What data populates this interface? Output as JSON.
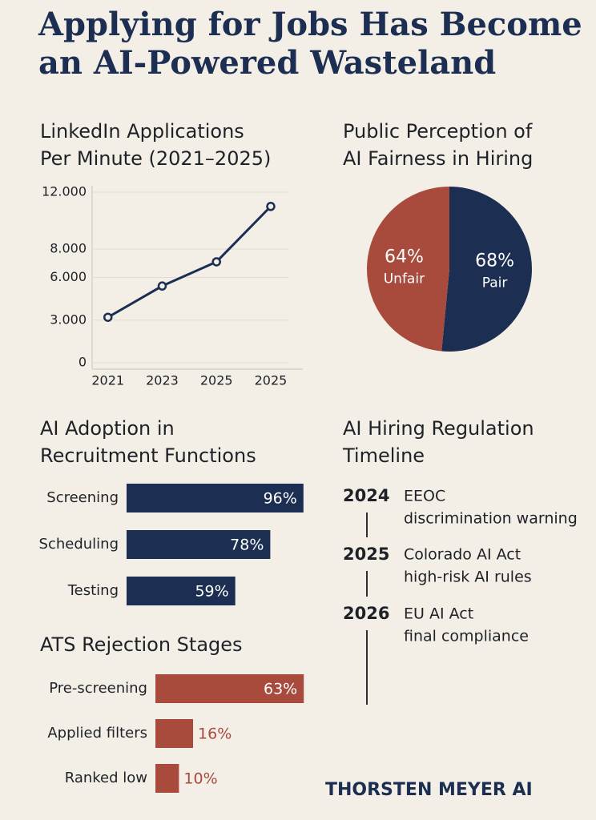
{
  "title": [
    "Applying for Jobs Has Become",
    "an AI-Powered Wasteland"
  ],
  "chart_data": [
    {
      "type": "line",
      "title": [
        "LinkedIn Applications",
        "Per Minute (2021–2025)"
      ],
      "categories": [
        "2021",
        "2023",
        "2025",
        "2025"
      ],
      "values": [
        3200,
        5400,
        7100,
        11000
      ],
      "color": "#1c2f52",
      "ylim": [
        0,
        12000
      ],
      "yticks": [
        0,
        {
          "value": 3000,
          "label": "3.000"
        },
        {
          "value": 6000,
          "label": "6.000"
        },
        {
          "value": 8000,
          "label": "8.000"
        },
        {
          "value": 12000,
          "label": "12.000"
        }
      ],
      "grid": true
    },
    {
      "type": "pie",
      "title": [
        "Public Perception of",
        "AI Fairness in Hiring"
      ],
      "categories": [
        "Pair",
        "Unfair"
      ],
      "values": [
        68,
        64
      ],
      "value_labels": [
        "68%",
        "64%"
      ],
      "colors": [
        "#1c2f52",
        "#a84a3c"
      ]
    },
    {
      "type": "hbar",
      "title": [
        "AI Adoption in",
        "Recruitment Functions"
      ],
      "categories": [
        "Screening",
        "Scheduling",
        "Testing"
      ],
      "values": [
        96,
        78,
        59
      ],
      "value_labels": [
        "96%",
        "78%",
        "59%"
      ],
      "color": "#1c2f52",
      "xlim": [
        0,
        100
      ]
    },
    {
      "type": "hbar",
      "title": [
        "ATS Rejection Stages"
      ],
      "categories": [
        "Pre-screening",
        "Applied filters",
        "Ranked low"
      ],
      "values": [
        63,
        16,
        10
      ],
      "value_labels": [
        "63%",
        "16%",
        "10%"
      ],
      "color": "#a84a3c",
      "xlim": [
        0,
        100
      ]
    }
  ],
  "timeline": {
    "title": [
      "AI Hiring Regulation",
      "Timeline"
    ],
    "events": [
      {
        "year": "2024",
        "text": [
          "EEOC",
          "discrimination warning"
        ]
      },
      {
        "year": "2025",
        "text": [
          "Colorado AI Act",
          "high-risk AI rules"
        ]
      },
      {
        "year": "2026",
        "text": [
          "EU AI Act",
          "final compliance"
        ]
      }
    ]
  },
  "footer": "THORSTEN MEYER AI"
}
